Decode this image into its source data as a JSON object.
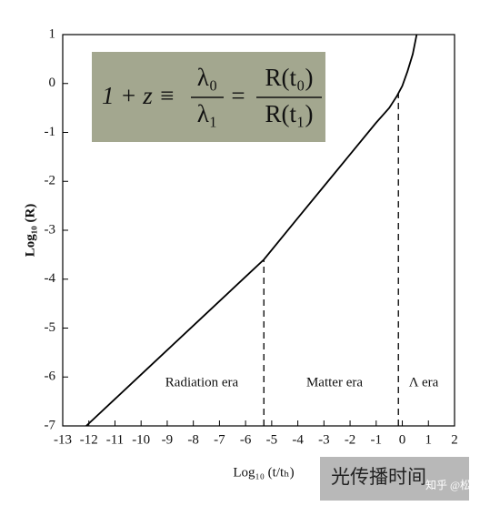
{
  "chart_data": {
    "type": "line",
    "xlabel": "Log₁₀ (t/tₕ)",
    "ylabel": "Log₁₀ (R)",
    "x": [
      -12.1,
      -11,
      -10,
      -9,
      -8,
      -7,
      -6,
      -5.3,
      -4,
      -3,
      -2,
      -1,
      -0.5,
      -0.2,
      0,
      0.2,
      0.4,
      0.55
    ],
    "series": [
      {
        "color": "#000000",
        "values": [
          -7,
          -6.45,
          -5.95,
          -5.45,
          -4.95,
          -4.45,
          -3.95,
          -3.6,
          -2.75,
          -2.1,
          -1.45,
          -0.8,
          -0.5,
          -0.25,
          -0.05,
          0.25,
          0.6,
          1.0
        ]
      }
    ],
    "xlim": [
      -13,
      2
    ],
    "xticks": [
      -13,
      -12,
      -11,
      -10,
      -9,
      -8,
      -7,
      -6,
      -5,
      -4,
      -3,
      -2,
      -1,
      0,
      1,
      2
    ],
    "ylim": [
      -7,
      1
    ],
    "yticks": [
      -7,
      -6,
      -5,
      -4,
      -3,
      -2,
      -1,
      0,
      1
    ],
    "boundaries": [
      {
        "x": -5.3,
        "y": -3.6
      },
      {
        "x": -0.15,
        "y": -0.2
      }
    ],
    "eras": [
      "Radiation era",
      "Matter era",
      "Λ era"
    ],
    "equation": {
      "lhs": "1 + z ≡",
      "frac1": [
        "λ₀",
        "λ₁"
      ],
      "eq": "=",
      "frac2": [
        "R(t₀)",
        "R(t₁)"
      ]
    },
    "watermark": {
      "caption": "光传播时间",
      "credit": "知乎 @松泉"
    }
  }
}
